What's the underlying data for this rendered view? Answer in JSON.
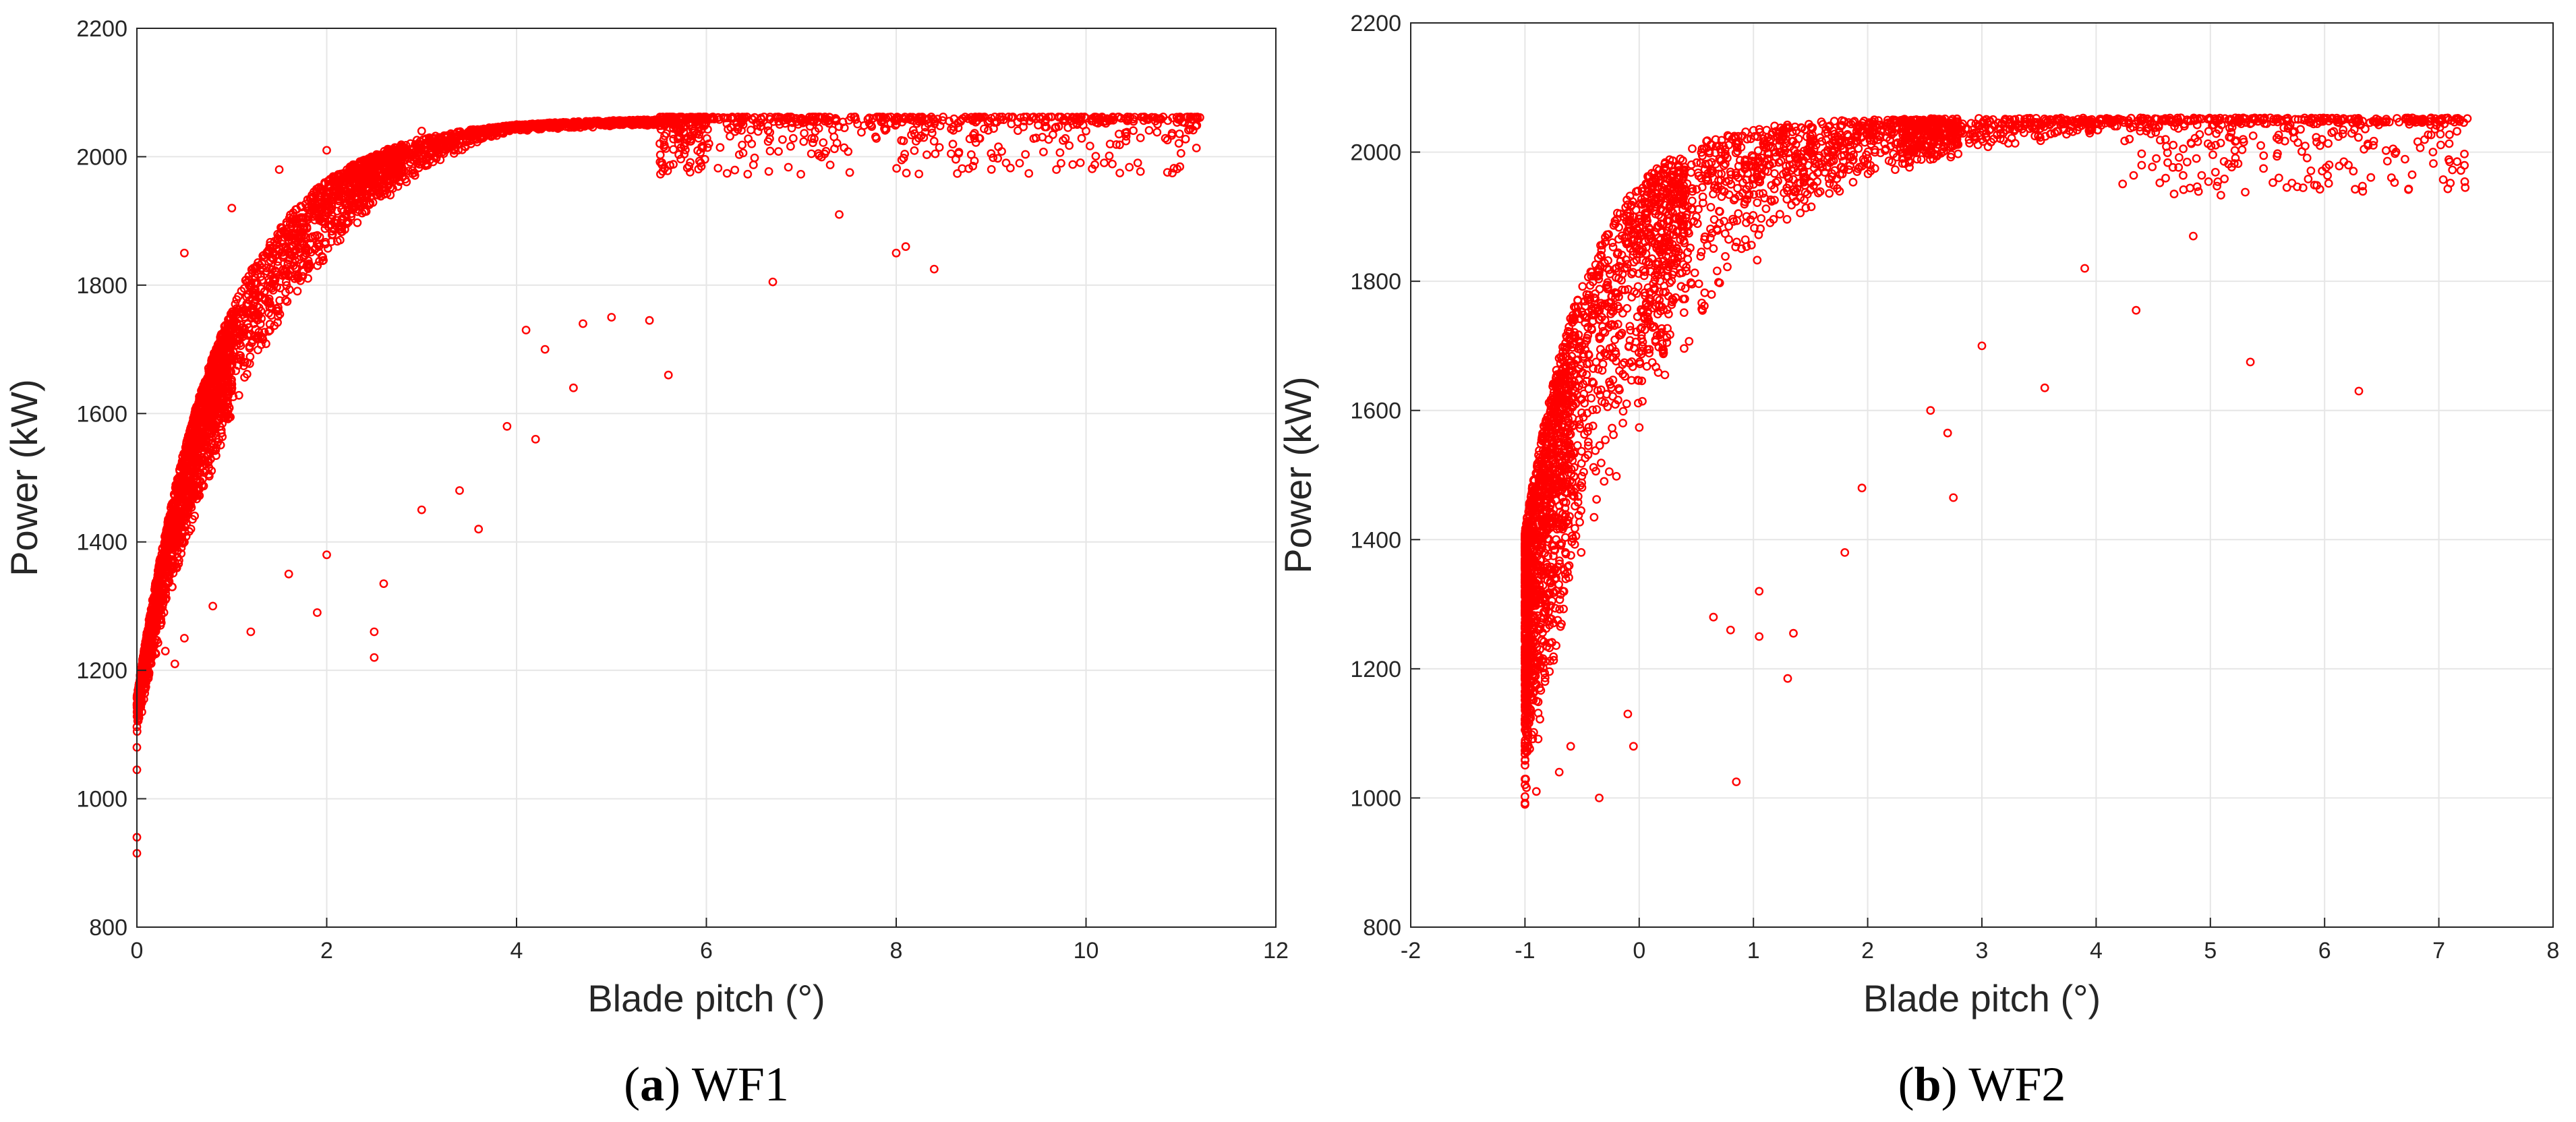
{
  "chart_data": [
    {
      "type": "scatter",
      "caption_tag": "a",
      "caption_text": "WF1",
      "xlabel": "Blade pitch (°)",
      "ylabel": "Power (kW)",
      "xlim": [
        0,
        12
      ],
      "ylim": [
        800,
        2200
      ],
      "xticks": [
        0,
        2,
        4,
        6,
        8,
        10,
        12
      ],
      "yticks": [
        800,
        1000,
        1200,
        1400,
        1600,
        1800,
        2000,
        2200
      ],
      "grid": true,
      "marker": "open-circle",
      "color": "#ff0000",
      "n_points": 4200,
      "points_sampled": [
        [
          0.0,
          915
        ],
        [
          0.0,
          940
        ],
        [
          0.0,
          1045
        ],
        [
          0.0,
          1080
        ],
        [
          0.02,
          1130
        ],
        [
          0.05,
          1175
        ],
        [
          0.1,
          1250
        ],
        [
          0.2,
          1320
        ],
        [
          0.3,
          1230
        ],
        [
          0.4,
          1210
        ],
        [
          0.5,
          1250
        ],
        [
          0.8,
          1300
        ],
        [
          1.2,
          1260
        ],
        [
          1.6,
          1350
        ],
        [
          2.0,
          1380
        ],
        [
          1.9,
          1290
        ],
        [
          2.5,
          1220
        ],
        [
          2.5,
          1260
        ],
        [
          2.6,
          1335
        ],
        [
          3.0,
          1450
        ],
        [
          3.6,
          1420
        ],
        [
          3.4,
          1480
        ],
        [
          4.2,
          1560
        ],
        [
          3.9,
          1580
        ],
        [
          4.6,
          1640
        ],
        [
          5.6,
          1660
        ],
        [
          4.1,
          1730
        ],
        [
          4.3,
          1700
        ],
        [
          4.7,
          1740
        ],
        [
          5.0,
          1750
        ],
        [
          5.4,
          1745
        ],
        [
          6.7,
          1805
        ],
        [
          8.0,
          1850
        ],
        [
          8.1,
          1860
        ],
        [
          8.4,
          1825
        ],
        [
          7.4,
          1910
        ],
        [
          9.3,
          1990
        ],
        [
          9.0,
          2005
        ],
        [
          10.0,
          2040
        ],
        [
          10.5,
          2055
        ],
        [
          11.0,
          2060
        ],
        [
          11.2,
          2061
        ],
        [
          0.5,
          1850
        ],
        [
          1.0,
          1920
        ],
        [
          1.5,
          1980
        ],
        [
          2.0,
          2010
        ],
        [
          3.0,
          2040
        ],
        [
          4.0,
          2050
        ],
        [
          5.0,
          2055
        ],
        [
          6.0,
          2058
        ],
        [
          7.0,
          2060
        ],
        [
          8.0,
          2060
        ],
        [
          9.0,
          2060
        ],
        [
          10.0,
          2060
        ]
      ],
      "density_note": "dense cloud rising from ~1100 kW at 0° to a 2060 kW plateau beyond ~5°"
    },
    {
      "type": "scatter",
      "caption_tag": "b",
      "caption_text": "WF2",
      "xlabel": "Blade pitch (°)",
      "ylabel": "Power (kW)",
      "xlim": [
        -2,
        8
      ],
      "ylim": [
        800,
        2200
      ],
      "xticks": [
        -2,
        -1,
        0,
        1,
        2,
        3,
        4,
        5,
        6,
        7,
        8
      ],
      "yticks": [
        800,
        1000,
        1200,
        1400,
        1600,
        1800,
        2000,
        2200
      ],
      "grid": true,
      "marker": "open-circle",
      "color": "#ff0000",
      "n_points": 3600,
      "points_sampled": [
        [
          -1.0,
          990
        ],
        [
          -0.9,
          1010
        ],
        [
          -0.7,
          1040
        ],
        [
          -0.6,
          1080
        ],
        [
          -0.35,
          1000
        ],
        [
          -0.05,
          1080
        ],
        [
          -0.1,
          1130
        ],
        [
          0.85,
          1025
        ],
        [
          1.3,
          1185
        ],
        [
          1.05,
          1250
        ],
        [
          0.8,
          1260
        ],
        [
          1.35,
          1255
        ],
        [
          0.65,
          1280
        ],
        [
          1.05,
          1320
        ],
        [
          1.8,
          1380
        ],
        [
          2.75,
          1465
        ],
        [
          1.95,
          1480
        ],
        [
          2.7,
          1565
        ],
        [
          2.55,
          1600
        ],
        [
          3.55,
          1635
        ],
        [
          5.35,
          1675
        ],
        [
          6.3,
          1630
        ],
        [
          3.0,
          1700
        ],
        [
          4.35,
          1755
        ],
        [
          3.9,
          1820
        ],
        [
          4.85,
          1870
        ],
        [
          5.6,
          1960
        ],
        [
          6.6,
          2005
        ],
        [
          6.8,
          2050
        ],
        [
          7.15,
          2052
        ],
        [
          7.25,
          2052
        ],
        [
          0.7,
          2010
        ],
        [
          0.0,
          1850
        ],
        [
          0.5,
          1900
        ],
        [
          1.0,
          1950
        ],
        [
          2.0,
          1990
        ],
        [
          3.0,
          2020
        ],
        [
          4.0,
          2045
        ],
        [
          5.0,
          2050
        ],
        [
          6.0,
          2052
        ],
        [
          -0.5,
          1700
        ],
        [
          -0.8,
          1500
        ]
      ],
      "density_note": "very dense near -1° from ~1000 to ~1600 kW, knee around 0°, plateau ~2052 kW from 4° to 7.2°"
    }
  ]
}
